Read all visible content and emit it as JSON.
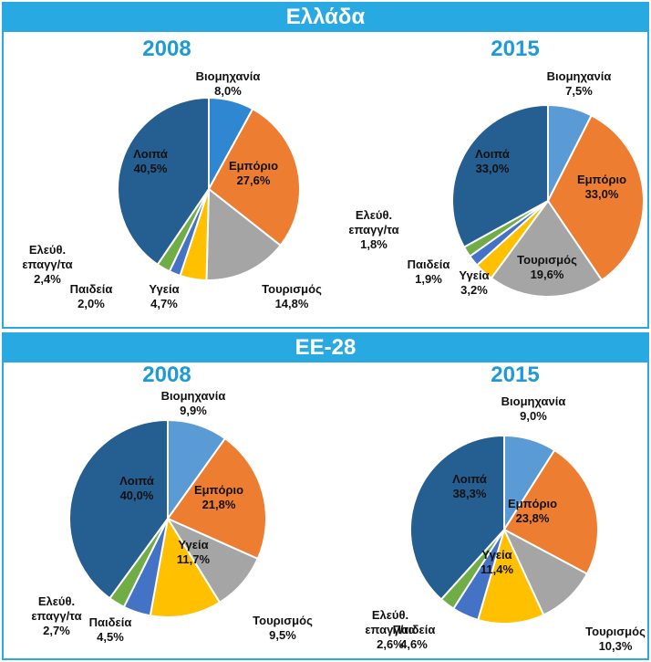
{
  "panels": [
    {
      "title": "Ελλάδα"
    },
    {
      "title": "ΕΕ-28"
    }
  ],
  "chart_data": [
    {
      "type": "pie",
      "title": "2008",
      "categories": [
        "Βιομηχανία",
        "Εμπόριο",
        "Τουρισμός",
        "Υγεία",
        "Παιδεία",
        "Ελεύθ. επαγγ/τα",
        "Λοιπά"
      ],
      "values": [
        8.0,
        27.6,
        14.8,
        4.7,
        2.0,
        2.4,
        40.5
      ],
      "value_labels": [
        "8,0%",
        "27,6%",
        "14,8%",
        "4,7%",
        "2,0%",
        "2,4%",
        "40,5%"
      ],
      "colors": [
        "#2e87d0",
        "#ed7d31",
        "#a5a5a5",
        "#ffc000",
        "#4472c4",
        "#70ad47",
        "#255e91"
      ]
    },
    {
      "type": "pie",
      "title": "2015",
      "categories": [
        "Βιομηχανία",
        "Εμπόριο",
        "Τουρισμός",
        "Υγεία",
        "Παιδεία",
        "Ελεύθ. επαγγ/τα",
        "Λοιπά"
      ],
      "values": [
        7.5,
        33.0,
        19.6,
        3.2,
        1.9,
        1.8,
        33.0
      ],
      "value_labels": [
        "7,5%",
        "33,0%",
        "19,6%",
        "3,2%",
        "1,9%",
        "1,8%",
        "33,0%"
      ],
      "colors": [
        "#5b9bd5",
        "#ed7d31",
        "#a5a5a5",
        "#ffc000",
        "#4472c4",
        "#70ad47",
        "#255e91"
      ]
    },
    {
      "type": "pie",
      "title": "2008",
      "categories": [
        "Βιομηχανία",
        "Εμπόριο",
        "Τουρισμός",
        "Υγεία",
        "Παιδεία",
        "Ελεύθ. επαγγ/τα",
        "Λοιπά"
      ],
      "values": [
        9.9,
        21.8,
        9.5,
        11.7,
        4.5,
        2.7,
        40.0
      ],
      "value_labels": [
        "9,9%",
        "21,8%",
        "9,5%",
        "11,7%",
        "4,5%",
        "2,7%",
        "40,0%"
      ],
      "colors": [
        "#5b9bd5",
        "#ed7d31",
        "#a5a5a5",
        "#ffc000",
        "#4472c4",
        "#70ad47",
        "#255e91"
      ]
    },
    {
      "type": "pie",
      "title": "2015",
      "categories": [
        "Βιομηχανία",
        "Εμπόριο",
        "Τουρισμός",
        "Υγεία",
        "Παιδεία",
        "Ελεύθ. επαγγ/τα",
        "Λοιπά"
      ],
      "values": [
        9.0,
        23.8,
        10.3,
        11.4,
        4.6,
        2.6,
        38.3
      ],
      "value_labels": [
        "9,0%",
        "23,8%",
        "10,3%",
        "11,4%",
        "4,6%",
        "2,6%",
        "38,3%"
      ],
      "colors": [
        "#5b9bd5",
        "#ed7d31",
        "#a5a5a5",
        "#ffc000",
        "#4472c4",
        "#70ad47",
        "#255e91"
      ]
    }
  ]
}
